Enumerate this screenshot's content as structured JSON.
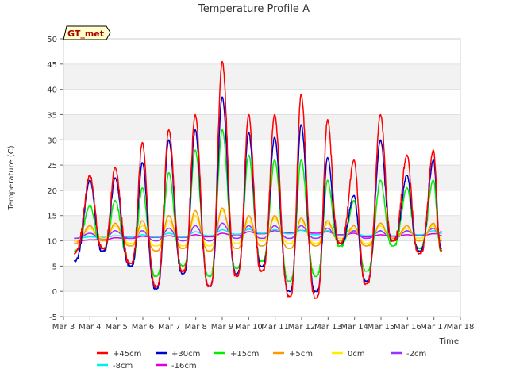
{
  "chart_data": {
    "type": "line",
    "title": "Temperature Profile A",
    "xlabel": "Time",
    "ylabel": "Temperature (C)",
    "ylim": [
      -5,
      50
    ],
    "yticks": [
      -5,
      0,
      5,
      10,
      15,
      20,
      25,
      30,
      35,
      40,
      45,
      50
    ],
    "xlim": [
      3,
      18
    ],
    "xtick_labels": [
      "Mar 3",
      "Mar 4",
      "Mar 5",
      "Mar 6",
      "Mar 7",
      "Mar 8",
      "Mar 9",
      "Mar 10",
      "Mar 11",
      "Mar 12",
      "Mar 13",
      "Mar 14",
      "Mar 15",
      "Mar 16",
      "Mar 17",
      "Mar 18"
    ],
    "x_unit": "day of March",
    "grid": "horizontal bands",
    "legend_placement": "bottom",
    "annotation": "GT_met",
    "peak_x": [
      4.0,
      4.95,
      5.98,
      6.98,
      7.98,
      9.0,
      10.0,
      10.98,
      11.98,
      12.98,
      13.98,
      14.98,
      15.98,
      16.98
    ],
    "trough_x": [
      3.4,
      4.5,
      5.55,
      6.5,
      7.52,
      8.52,
      9.55,
      10.5,
      11.55,
      12.55,
      13.45,
      14.45,
      15.45,
      16.45,
      17.3
    ],
    "series": [
      {
        "name": "+45cm",
        "color": "#ff0000",
        "peaks": [
          23,
          24.5,
          29.5,
          32,
          35,
          45.5,
          35,
          35,
          39,
          34,
          26,
          35,
          27,
          28
        ],
        "troughs": [
          7.5,
          8.5,
          5.5,
          1,
          4,
          1,
          3,
          4,
          -1,
          -1.3,
          9.5,
          1.5,
          10,
          7.5,
          8
        ]
      },
      {
        "name": "+30cm",
        "color": "#0000cc",
        "peaks": [
          22,
          22.5,
          25.5,
          30,
          32,
          38.5,
          31.5,
          30.5,
          33,
          26.5,
          19,
          30,
          23,
          26
        ],
        "troughs": [
          6,
          8,
          5,
          0.5,
          3.5,
          1,
          3.5,
          5,
          0,
          0,
          9.5,
          2,
          10,
          8,
          8.5
        ]
      },
      {
        "name": "+15cm",
        "color": "#00ee00",
        "peaks": [
          17,
          18,
          20.5,
          23.5,
          28,
          32,
          27,
          26,
          26,
          22,
          18,
          22,
          20.5,
          22
        ],
        "troughs": [
          8,
          8.5,
          5.5,
          3,
          5,
          3,
          4.5,
          6,
          2,
          3,
          9,
          4,
          9,
          8.5,
          8
        ]
      },
      {
        "name": "+5cm",
        "color": "#ff9900",
        "peaks": [
          13,
          13.5,
          14,
          15,
          16,
          16.5,
          15,
          15,
          14.5,
          14,
          13,
          13.5,
          13,
          13.5
        ],
        "troughs": [
          9.5,
          10,
          9,
          8,
          8.5,
          8,
          8.5,
          9,
          8.5,
          9,
          10,
          9,
          10.5,
          10,
          10
        ]
      },
      {
        "name": "0cm",
        "color": "#ffee00",
        "peaks": [
          12.5,
          13,
          13,
          14,
          15,
          16,
          14,
          14.5,
          14,
          13.5,
          12.5,
          13,
          12.5,
          13
        ],
        "troughs": [
          10,
          10.5,
          9.5,
          9,
          9,
          9,
          9.5,
          10,
          9.5,
          9.5,
          10.5,
          9.5,
          10.5,
          10.5,
          10.5
        ]
      },
      {
        "name": "-2cm",
        "color": "#9933ff",
        "peaks": [
          11.5,
          12,
          12,
          12.5,
          13,
          13.5,
          13,
          13,
          13,
          12.5,
          12,
          12,
          12,
          12.5
        ],
        "troughs": [
          10.5,
          10.5,
          10.5,
          10,
          10,
          10,
          10.5,
          10.5,
          10.5,
          10.5,
          10.5,
          10.5,
          10.5,
          11,
          11
        ]
      },
      {
        "name": "-8cm",
        "color": "#00eeee",
        "peaks": [
          10.8,
          11,
          11.2,
          11.5,
          11.8,
          12.2,
          12.3,
          12.2,
          12.1,
          12,
          11.8,
          11.8,
          11.8,
          12
        ],
        "troughs": [
          10.5,
          10.7,
          10.8,
          10.8,
          10.8,
          11,
          11.3,
          11.5,
          11.4,
          11.2,
          11,
          11,
          11,
          11.2,
          11.5
        ]
      },
      {
        "name": "-16cm",
        "color": "#dd00dd",
        "peaks": [
          10.2,
          10.6,
          10.9,
          11,
          11.2,
          11.5,
          11.8,
          12,
          12.1,
          11.8,
          11.5,
          11.2,
          11.2,
          11.4
        ],
        "troughs": [
          10,
          10.2,
          10.5,
          10.7,
          10.7,
          10.8,
          11,
          11.4,
          11.6,
          11.5,
          11.2,
          10.8,
          10.9,
          11,
          11.8
        ]
      }
    ]
  }
}
